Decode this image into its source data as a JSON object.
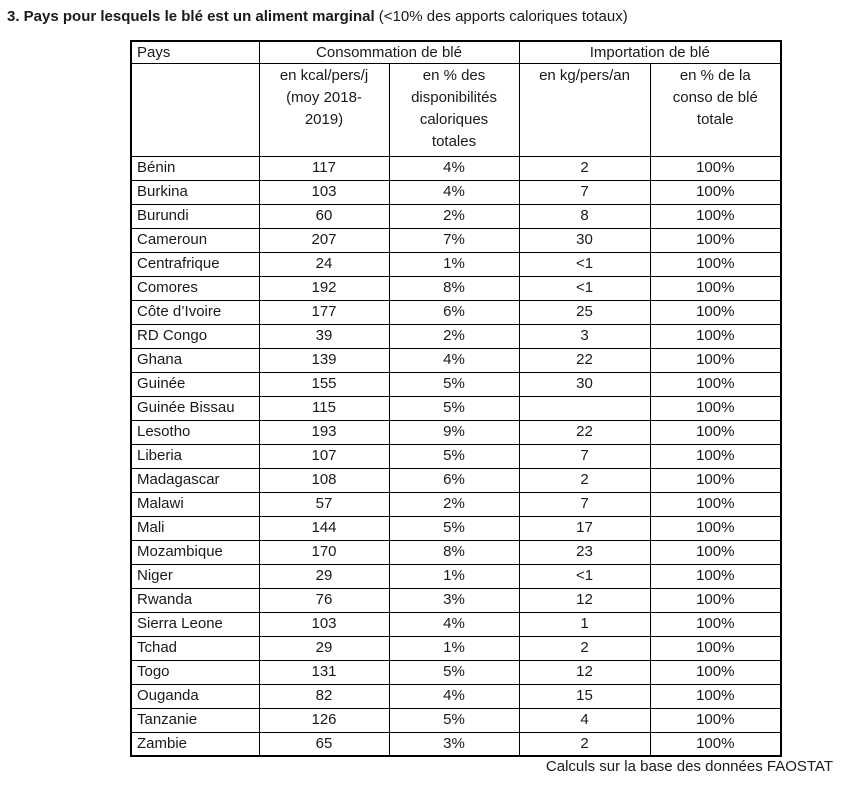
{
  "title": {
    "bold": "3. Pays pour lesquels le blé est un aliment marginal",
    "normal": " (<10% des apports caloriques totaux)"
  },
  "table": {
    "header": {
      "col_pays": "Pays",
      "group_consommation": "Consommation de blé",
      "group_importation": "Importation de blé",
      "sub_kcal": "en kcal/pers/j\n(moy 2018-\n2019)",
      "sub_pct_dispo": "en % des\ndisponibilités\ncaloriques\ntotales",
      "sub_kg": "en kg/pers/an",
      "sub_pct_conso": "en % de la\nconso de blé\ntotale"
    },
    "rows": [
      [
        "Bénin",
        "117",
        "4%",
        "2",
        "100%"
      ],
      [
        "Burkina",
        "103",
        "4%",
        "7",
        "100%"
      ],
      [
        "Burundi",
        "60",
        "2%",
        "8",
        "100%"
      ],
      [
        "Cameroun",
        "207",
        "7%",
        "30",
        "100%"
      ],
      [
        "Centrafrique",
        "24",
        "1%",
        "<1",
        "100%"
      ],
      [
        "Comores",
        "192",
        "8%",
        "<1",
        "100%"
      ],
      [
        "Côte d’Ivoire",
        "177",
        "6%",
        "25",
        "100%"
      ],
      [
        "RD Congo",
        "39",
        "2%",
        "3",
        "100%"
      ],
      [
        "Ghana",
        "139",
        "4%",
        "22",
        "100%"
      ],
      [
        "Guinée",
        "155",
        "5%",
        "30",
        "100%"
      ],
      [
        "Guinée Bissau",
        "115",
        "5%",
        "",
        "100%"
      ],
      [
        "Lesotho",
        "193",
        "9%",
        "22",
        "100%"
      ],
      [
        "Liberia",
        "107",
        "5%",
        "7",
        "100%"
      ],
      [
        "Madagascar",
        "108",
        "6%",
        "2",
        "100%"
      ],
      [
        "Malawi",
        "57",
        "2%",
        "7",
        "100%"
      ],
      [
        "Mali",
        "144",
        "5%",
        "17",
        "100%"
      ],
      [
        "Mozambique",
        "170",
        "8%",
        "23",
        "100%"
      ],
      [
        "Niger",
        "29",
        "1%",
        "<1",
        "100%"
      ],
      [
        "Rwanda",
        "76",
        "3%",
        "12",
        "100%"
      ],
      [
        "Sierra Leone",
        "103",
        "4%",
        "1",
        "100%"
      ],
      [
        "Tchad",
        "29",
        "1%",
        "2",
        "100%"
      ],
      [
        "Togo",
        "131",
        "5%",
        "12",
        "100%"
      ],
      [
        "Ouganda",
        "82",
        "4%",
        "15",
        "100%"
      ],
      [
        "Tanzanie",
        "126",
        "5%",
        "4",
        "100%"
      ],
      [
        "Zambie",
        "65",
        "3%",
        "2",
        "100%"
      ]
    ]
  },
  "footer": "Calculs sur la base des données FAOSTAT"
}
